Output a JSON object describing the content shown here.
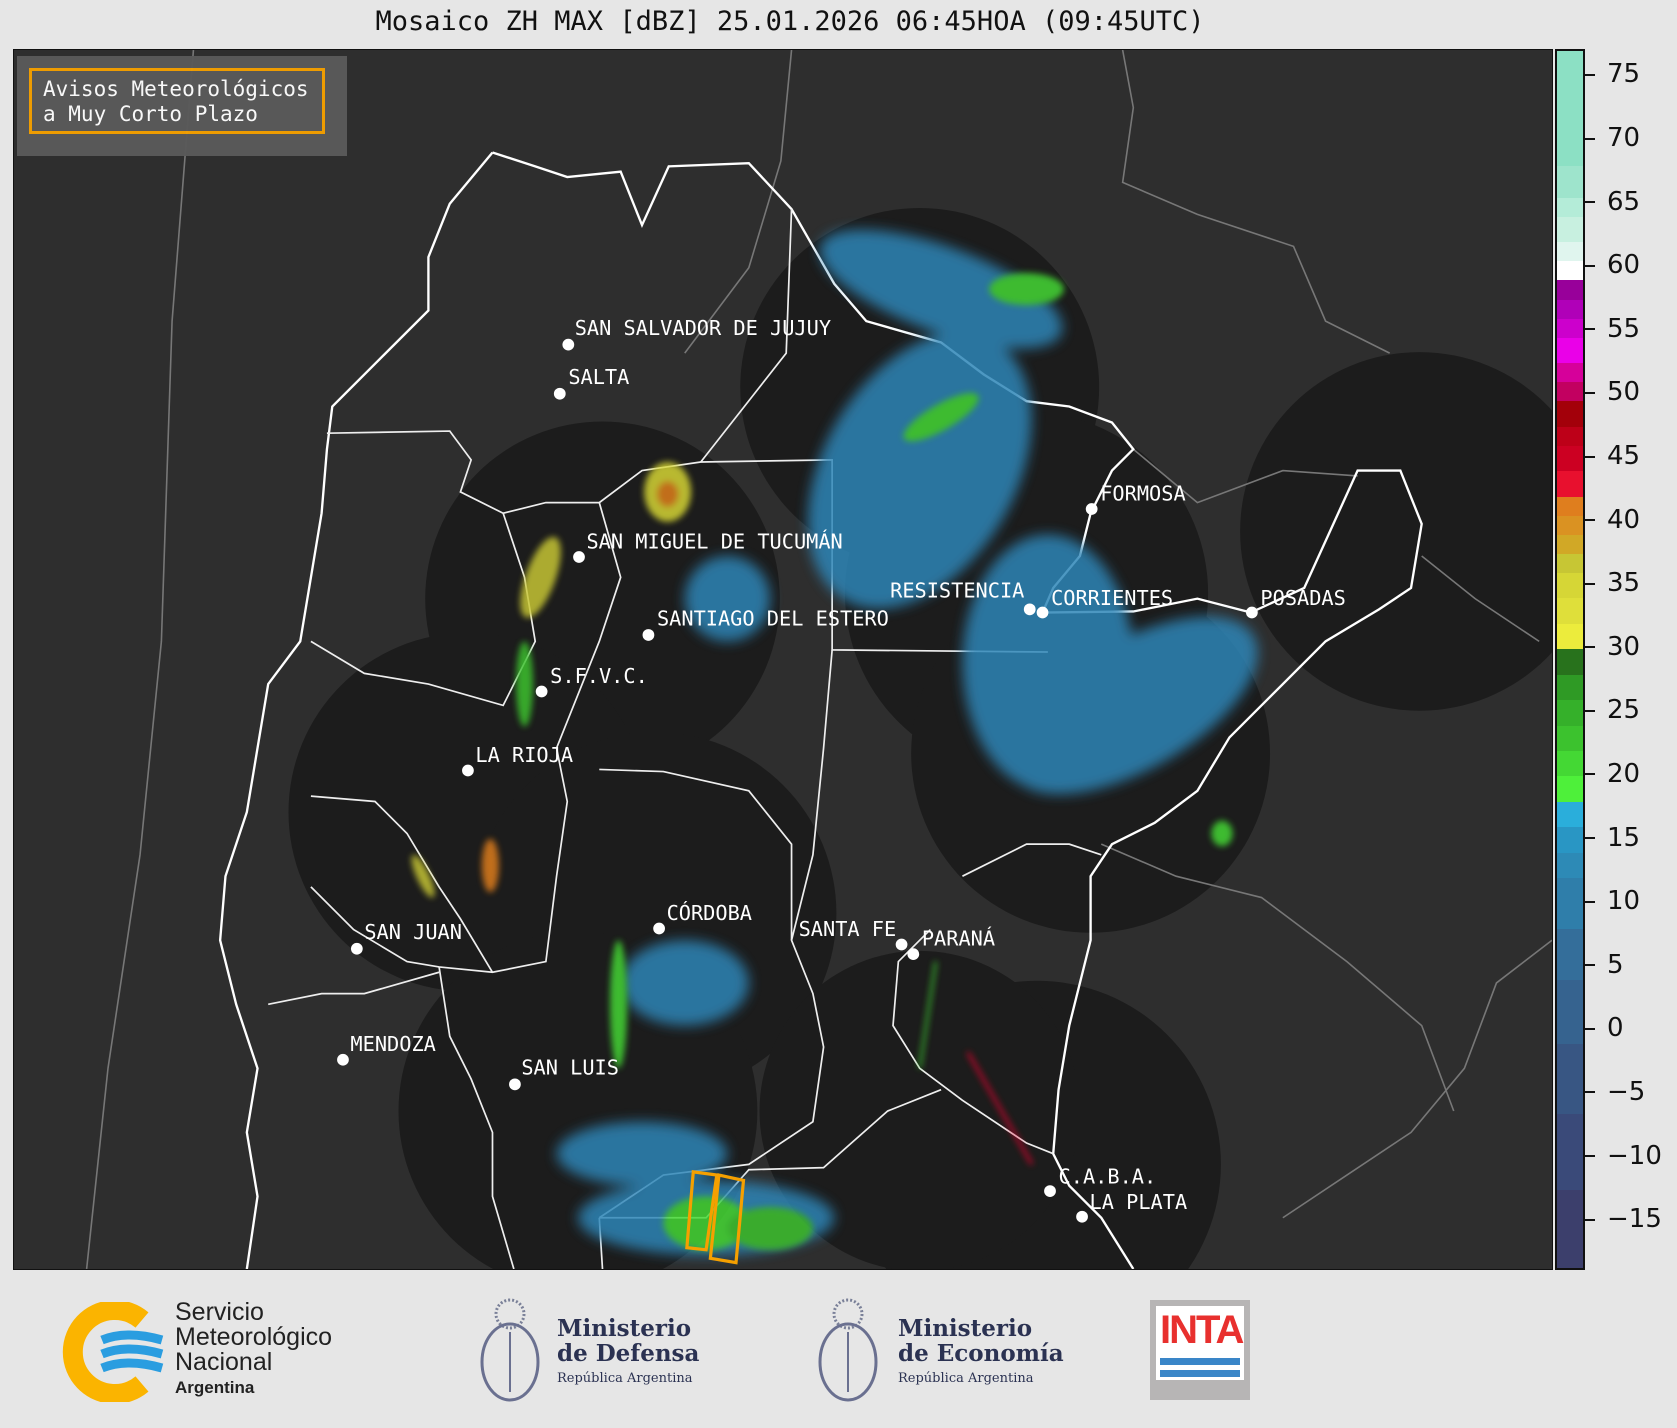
{
  "title": "Mosaico ZH MAX [dBZ] 25.01.2026 06:45HOA (09:45UTC)",
  "warning_box": {
    "line1": "Avisos Meteorológicos",
    "line2": "a Muy Corto Plazo",
    "border_color": "#f5a000"
  },
  "cities": [
    {
      "name": "SAN SALVADOR DE JUJUY"
    },
    {
      "name": "SALTA"
    },
    {
      "name": "SAN MIGUEL DE TUCUMÁN"
    },
    {
      "name": "SANTIAGO DEL ESTERO"
    },
    {
      "name": "S.F.V.C."
    },
    {
      "name": "LA RIOJA"
    },
    {
      "name": "SAN JUAN"
    },
    {
      "name": "MENDOZA"
    },
    {
      "name": "SAN LUIS"
    },
    {
      "name": "CÓRDOBA"
    },
    {
      "name": "SANTA FE"
    },
    {
      "name": "PARANÁ"
    },
    {
      "name": "FORMOSA"
    },
    {
      "name": "RESISTENCIA"
    },
    {
      "name": "CORRIENTES"
    },
    {
      "name": "POSADAS"
    },
    {
      "name": "C.A.B.A."
    },
    {
      "name": "LA PLATA"
    }
  ],
  "colorbar": {
    "unit": "dBZ",
    "range": [
      -19,
      77
    ],
    "ticks": [
      "75",
      "70",
      "65",
      "60",
      "55",
      "50",
      "45",
      "40",
      "35",
      "30",
      "25",
      "20",
      "15",
      "10",
      "5",
      "0",
      "−5",
      "−10",
      "−15"
    ],
    "tick_values": [
      75,
      70,
      65,
      60,
      55,
      50,
      45,
      40,
      35,
      30,
      25,
      20,
      15,
      10,
      5,
      0,
      -5,
      -10,
      -15
    ],
    "bins": [
      [
        -19,
        -12.5,
        "#3c3f6c"
      ],
      [
        -12.5,
        -6.5,
        "#3a4a79"
      ],
      [
        -6.5,
        -1,
        "#385683"
      ],
      [
        -1,
        4,
        "#36638f"
      ],
      [
        4,
        8,
        "#346e9a"
      ],
      [
        8,
        12,
        "#2f7eaa"
      ],
      [
        12,
        14,
        "#2d8ab6"
      ],
      [
        14,
        16,
        "#2996c4"
      ],
      [
        16,
        18,
        "#2aaedb"
      ],
      [
        18,
        20,
        "#4ef03a"
      ],
      [
        20,
        22,
        "#44d834"
      ],
      [
        22,
        24,
        "#3cc22e"
      ],
      [
        24,
        26,
        "#35b02a"
      ],
      [
        26,
        28,
        "#2f9a25"
      ],
      [
        28,
        30,
        "#28721c"
      ],
      [
        30,
        32,
        "#ecec3c"
      ],
      [
        32,
        34,
        "#dfdf3a"
      ],
      [
        34,
        36,
        "#d6d636"
      ],
      [
        36,
        37.5,
        "#c7c634"
      ],
      [
        37.5,
        39,
        "#d1a826"
      ],
      [
        39,
        40.5,
        "#da9222"
      ],
      [
        40.5,
        42,
        "#df7e1e"
      ],
      [
        42,
        44,
        "#e8102e"
      ],
      [
        44,
        46,
        "#cc0022"
      ],
      [
        46,
        47.5,
        "#bd0018"
      ],
      [
        47.5,
        49.5,
        "#a3000a"
      ],
      [
        49.5,
        51,
        "#c20060"
      ],
      [
        51,
        52.5,
        "#d6009a"
      ],
      [
        52.5,
        54.5,
        "#ea00e8"
      ],
      [
        54.5,
        56,
        "#cc00cc"
      ],
      [
        56,
        57.5,
        "#b000b8"
      ],
      [
        57.5,
        59,
        "#98009a"
      ],
      [
        59,
        60.5,
        "#ffffff"
      ],
      [
        60.5,
        62,
        "#e0f5ee"
      ],
      [
        62,
        64,
        "#c8f0e0"
      ],
      [
        64,
        65.5,
        "#b4ecd8"
      ],
      [
        65.5,
        68,
        "#9ee4cc"
      ],
      [
        68,
        77,
        "#8ce0c4"
      ]
    ]
  },
  "logos": {
    "smn": {
      "line1": "Servicio",
      "line2": "Meteorológico",
      "line3": "Nacional",
      "line4": "Argentina"
    },
    "defensa": {
      "line1": "Ministerio",
      "line2": "de Defensa",
      "line3": "República Argentina"
    },
    "economia": {
      "line1": "Ministerio",
      "line2": "de Economía",
      "line3": "República Argentina"
    },
    "inta": {
      "text": "INTA"
    }
  }
}
